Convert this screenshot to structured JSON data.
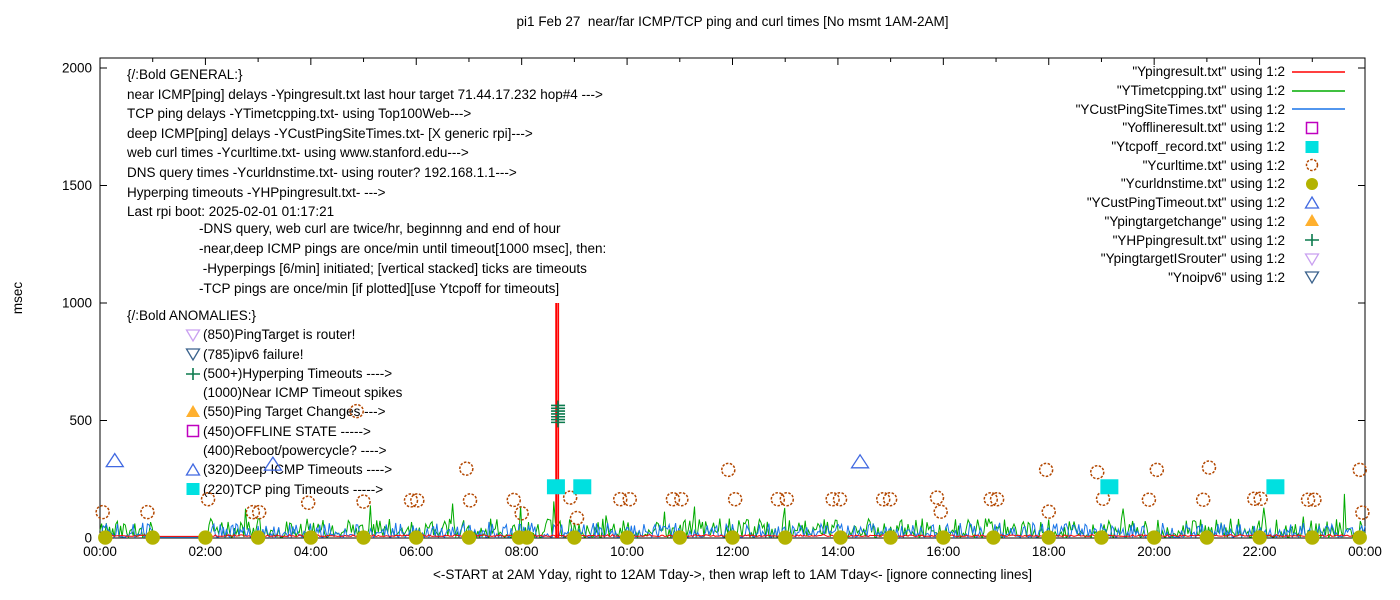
{
  "title": "pi1 Feb 27  near/far ICMP/TCP ping and curl times [No msmt 1AM-2AM]",
  "ylabel": "msec",
  "xlabel": "<-START at 2AM Yday, right to 12AM Tday->, then wrap left to 1AM Tday<- [ignore connecting lines]",
  "colors": {
    "near_ping_red": "#ff0000",
    "tcp_ping_green": "#00ab00",
    "deep_ping_blue": "#1874e8",
    "offline_magenta": "#bf00bf",
    "tcpoff_cyan": "#00e0e0",
    "curl_circle": "#b34700",
    "dns_olive": "#b3b300",
    "deep_timeout_triangle": "#4169e1",
    "target_change_orange": "#ffb02e",
    "hyperping_plus": "#0b7a4d",
    "isrouter_violet": "#c9a0f0",
    "noipv6_navy": "#3a628c",
    "axis": "#000000"
  },
  "annotations": {
    "general": {
      "header": "{/:Bold GENERAL:}",
      "lines": [
        "near ICMP[ping] delays -Ypingresult.txt last hour target 71.44.17.232 hop#4 --->",
        "TCP ping delays -YTimetcpping.txt- using Top100Web--->",
        "deep ICMP[ping] delays -YCustPingSiteTimes.txt- [X generic rpi]--->",
        "web curl times -Ycurltime.txt- using www.stanford.edu--->",
        "DNS query times -Ycurldnstime.txt- using router? 192.168.1.1--->",
        "Hyperping timeouts -YHPpingresult.txt- --->",
        "Last rpi boot: 2025-02-01 01:17:21"
      ]
    },
    "notes": [
      "-DNS query, web curl are twice/hr, beginnng and end of hour",
      "-near,deep ICMP pings are once/min until timeout[1000 msec], then:",
      " -Hyperpings [6/min] initiated; [vertical stacked] ticks are timeouts",
      "-TCP pings are once/min [if plotted][use Ytcpoff for timeouts]"
    ],
    "anomalies": {
      "header": "{/:Bold ANOMALIES:}",
      "items": [
        {
          "marker": "down-triangle-open",
          "color": "#c9a0f0",
          "label": "(850)PingTarget is router!"
        },
        {
          "marker": "down-triangle-open",
          "color": "#3a628c",
          "label": "(785)ipv6 failure!"
        },
        {
          "marker": "plus",
          "color": "#0b7a4d",
          "label": "(500+)Hyperping Timeouts ---->"
        },
        {
          "marker": "none",
          "color": "",
          "label": "(1000)Near ICMP Timeout spikes"
        },
        {
          "marker": "triangle-filled",
          "color": "#ffb02e",
          "label": "(550)Ping Target Changes --->"
        },
        {
          "marker": "square-open",
          "color": "#bf00bf",
          "label": "(450)OFFLINE STATE ----->"
        },
        {
          "marker": "none",
          "color": "",
          "label": "(400)Reboot/powercycle? ---->"
        },
        {
          "marker": "triangle-open",
          "color": "#4169e1",
          "label": "(320)Deep ICMP Timeouts ---->"
        },
        {
          "marker": "square-filled",
          "color": "#00e0e0",
          "label": "(220)TCP ping Timeouts ----->"
        }
      ]
    }
  },
  "chart_data": {
    "type": "line",
    "x_axis": {
      "tick_labels": [
        "00:00",
        "02:00",
        "04:00",
        "06:00",
        "08:00",
        "10:00",
        "12:00",
        "14:00",
        "16:00",
        "18:00",
        "20:00",
        "22:00",
        "00:00"
      ],
      "tick_hours": [
        0,
        2,
        4,
        6,
        8,
        10,
        12,
        14,
        16,
        18,
        20,
        22,
        24
      ],
      "minor_every_hours": 1,
      "range_hours": [
        0,
        24
      ]
    },
    "y_axis": {
      "ticks": [
        0,
        500,
        1000,
        1500,
        2000
      ],
      "range_msec": [
        0,
        2042
      ],
      "label": "msec"
    },
    "gap_no_measurement_hours": [
      1,
      2
    ],
    "legend": [
      {
        "label": "\"Ypingresult.txt\" using 1:2",
        "marker": "line",
        "color": "#ff0000"
      },
      {
        "label": "\"YTimetcpping.txt\" using 1:2",
        "marker": "line",
        "color": "#00ab00"
      },
      {
        "label": "\"YCustPingSiteTimes.txt\" using 1:2",
        "marker": "line",
        "color": "#1874e8"
      },
      {
        "label": "\"Yofflineresult.txt\" using 1:2",
        "marker": "square-open",
        "color": "#bf00bf"
      },
      {
        "label": "\"Ytcpoff_record.txt\" using 1:2",
        "marker": "square-filled",
        "color": "#00e0e0"
      },
      {
        "label": "\"Ycurltime.txt\" using 1:2",
        "marker": "circle-open",
        "color": "#b34700"
      },
      {
        "label": "\"Ycurldnstime.txt\" using 1:2",
        "marker": "circle-filled",
        "color": "#b3b300"
      },
      {
        "label": "\"YCustPingTimeout.txt\" using 1:2",
        "marker": "triangle-open",
        "color": "#4169e1"
      },
      {
        "label": "\"Ypingtargetchange\" using 1:2",
        "marker": "triangle-filled",
        "color": "#ffb02e"
      },
      {
        "label": "\"YHPpingresult.txt\" using 1:2",
        "marker": "plus",
        "color": "#0b7a4d"
      },
      {
        "label": "\"YpingtargetISrouter\" using 1:2",
        "marker": "down-triangle-open",
        "color": "#c9a0f0"
      },
      {
        "label": "\"Ynoipv6\" using 1:2",
        "marker": "down-triangle-open",
        "color": "#3a628c"
      }
    ],
    "noise": {
      "seed": 42,
      "step_hours": 0.03,
      "series": [
        {
          "name": "YTimetcpping",
          "color": "#00ab00",
          "base": 3,
          "amp": 80,
          "spike_amp": 150,
          "spike_prob": 0.035
        },
        {
          "name": "YCustPingSiteTimes",
          "color": "#1874e8",
          "base": 3,
          "amp": 62,
          "spike_amp": 25,
          "spike_prob": 0.03
        },
        {
          "name": "Ypingresult",
          "color": "#ff0000",
          "base": 7,
          "amp": 7,
          "spike_amp": 0,
          "spike_prob": 0
        }
      ]
    },
    "red_timeout_spikes": [
      {
        "hour": 8.66,
        "msec": 1000,
        "width": 2.4
      },
      {
        "hour": 8.7,
        "msec": 1000,
        "width": 1.1
      }
    ],
    "markers": {
      "curl_circles": [
        [
          0.05,
          110
        ],
        [
          0.9,
          110
        ],
        [
          2.05,
          165
        ],
        [
          2.9,
          110
        ],
        [
          3.02,
          110
        ],
        [
          3.95,
          150
        ],
        [
          4.87,
          540
        ],
        [
          5.0,
          155
        ],
        [
          5.9,
          160
        ],
        [
          6.02,
          160
        ],
        [
          6.95,
          295
        ],
        [
          7.02,
          160
        ],
        [
          7.85,
          162
        ],
        [
          8.0,
          105
        ],
        [
          8.92,
          172
        ],
        [
          9.05,
          85
        ],
        [
          9.87,
          165
        ],
        [
          10.05,
          165
        ],
        [
          10.87,
          165
        ],
        [
          11.03,
          165
        ],
        [
          11.92,
          290
        ],
        [
          12.05,
          165
        ],
        [
          12.86,
          165
        ],
        [
          13.03,
          165
        ],
        [
          13.9,
          165
        ],
        [
          14.04,
          165
        ],
        [
          14.86,
          165
        ],
        [
          14.99,
          165
        ],
        [
          15.88,
          172
        ],
        [
          15.95,
          112
        ],
        [
          16.9,
          165
        ],
        [
          17.02,
          165
        ],
        [
          17.95,
          290
        ],
        [
          18.0,
          112
        ],
        [
          18.92,
          280
        ],
        [
          19.03,
          167
        ],
        [
          19.9,
          163
        ],
        [
          20.05,
          290
        ],
        [
          20.93,
          163
        ],
        [
          21.04,
          300
        ],
        [
          21.9,
          167
        ],
        [
          22.02,
          167
        ],
        [
          22.92,
          163
        ],
        [
          23.04,
          163
        ],
        [
          23.9,
          290
        ],
        [
          23.95,
          108
        ]
      ],
      "dns_dots_hours": [
        0.1,
        1,
        2,
        3,
        4,
        5,
        6,
        7,
        7.95,
        8.1,
        9,
        10,
        11,
        12,
        13,
        14.05,
        15,
        16,
        16.95,
        18,
        19,
        20,
        21,
        22,
        23,
        23.9
      ],
      "dns_dots_msec": 2,
      "tcp_timeout_squares": [
        [
          8.65,
          218
        ],
        [
          9.15,
          218
        ],
        [
          19.15,
          218
        ],
        [
          22.3,
          218
        ]
      ],
      "deep_icmp_timeout_triangles": [
        [
          0.28,
          325
        ],
        [
          3.28,
          310
        ],
        [
          14.42,
          320
        ]
      ],
      "hyperping_timeout_plus": {
        "hour": 8.69,
        "values": [
          492,
          504,
          516,
          528,
          540,
          552,
          564
        ]
      }
    }
  }
}
